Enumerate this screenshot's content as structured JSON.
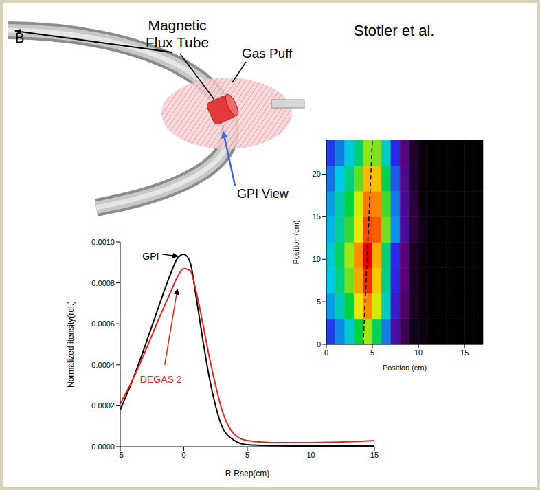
{
  "credit": "Stotler et al.",
  "diagram": {
    "field_label": "B",
    "flux_tube_label": "Magnetic Flux Tube",
    "gas_puff_label": "Gas Puff",
    "view_label": "GPI View"
  },
  "chart_data": [
    {
      "type": "line",
      "x": [
        -5,
        -4,
        -3,
        -2,
        -1,
        -0.5,
        0,
        0.5,
        1,
        1.5,
        2,
        2.5,
        3,
        4,
        5,
        7,
        10,
        15
      ],
      "xlim": [
        -5,
        15
      ],
      "xticks": [
        -5,
        0,
        5,
        10,
        15
      ],
      "ylim": [
        0,
        0.001
      ],
      "yticks": [
        {
          "value": 0,
          "label": "0.0000"
        },
        {
          "value": 0.0002,
          "label": "0.0002"
        },
        {
          "value": 0.0004,
          "label": "0.0004"
        },
        {
          "value": 0.0006,
          "label": "0.0006"
        },
        {
          "value": 0.0008,
          "label": "0.0008"
        },
        {
          "value": 0.001,
          "label": "0.0010"
        }
      ],
      "x_label": "R-Rsep(cm)",
      "y_label": "Normalized itensity(rel.)",
      "series": [
        {
          "name": "GPI",
          "color": "#000000",
          "values": [
            0.00018,
            0.00033,
            0.0005,
            0.00068,
            0.00085,
            0.00092,
            0.00094,
            0.0009,
            0.00072,
            0.00052,
            0.00034,
            0.0002,
            0.0001,
            3e-05,
            1e-05,
            5e-06,
            3e-06,
            3e-06
          ]
        },
        {
          "name": "DEGAS 2",
          "color": "#e8221e",
          "values": [
            0.00021,
            0.00033,
            0.00047,
            0.00062,
            0.00076,
            0.00083,
            0.00087,
            0.00086,
            0.00075,
            0.0006,
            0.00044,
            0.0003,
            0.00018,
            6e-05,
            3e-05,
            2e-05,
            2e-05,
            3e-05
          ]
        }
      ]
    },
    {
      "type": "heatmap",
      "x_edges": [
        0,
        1,
        2,
        3,
        4,
        5,
        6,
        7,
        8,
        9,
        10,
        11,
        12,
        13,
        14,
        15,
        16,
        17
      ],
      "y_edges": [
        0,
        3,
        6,
        9,
        12,
        15,
        18,
        21,
        24
      ],
      "cells": [
        [
          0.27,
          0.34,
          0.42,
          0.55,
          0.65,
          0.52,
          0.33,
          0.16,
          0.07,
          0.02,
          0.01,
          0,
          0,
          0,
          0,
          0,
          0
        ],
        [
          0.36,
          0.44,
          0.55,
          0.72,
          0.85,
          0.68,
          0.43,
          0.21,
          0.09,
          0.03,
          0.01,
          0,
          0,
          0,
          0,
          0,
          0
        ],
        [
          0.4,
          0.49,
          0.62,
          0.81,
          0.95,
          0.76,
          0.48,
          0.24,
          0.1,
          0.03,
          0.01,
          0,
          0,
          0,
          0,
          0,
          0
        ],
        [
          0.42,
          0.52,
          0.65,
          0.85,
          1.0,
          0.8,
          0.5,
          0.25,
          0.1,
          0.03,
          0.01,
          0,
          0,
          0,
          0,
          0,
          0
        ],
        [
          0.38,
          0.47,
          0.58,
          0.72,
          0.92,
          0.9,
          0.62,
          0.35,
          0.15,
          0.05,
          0.02,
          0,
          0,
          0,
          0,
          0,
          0
        ],
        [
          0.36,
          0.45,
          0.55,
          0.68,
          0.87,
          0.86,
          0.59,
          0.33,
          0.14,
          0.05,
          0.01,
          0,
          0,
          0,
          0,
          0,
          0
        ],
        [
          0.32,
          0.4,
          0.49,
          0.61,
          0.78,
          0.77,
          0.53,
          0.3,
          0.13,
          0.04,
          0.01,
          0,
          0,
          0,
          0,
          0,
          0
        ],
        [
          0.27,
          0.33,
          0.41,
          0.5,
          0.64,
          0.63,
          0.43,
          0.25,
          0.11,
          0.04,
          0.01,
          0,
          0,
          0,
          0,
          0,
          0
        ]
      ],
      "xlim": [
        0,
        17
      ],
      "ylim": [
        0,
        24
      ],
      "xticks": [
        0,
        5,
        10,
        15
      ],
      "yticks": [
        0,
        5,
        10,
        15,
        20
      ],
      "x_label": "Position (cm)",
      "y_label": "Position (cm)",
      "dashed_line": {
        "x": [
          4,
          5
        ],
        "y": [
          0,
          24
        ]
      }
    }
  ]
}
